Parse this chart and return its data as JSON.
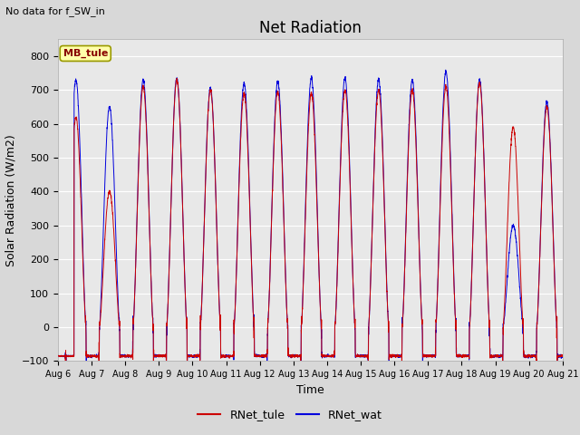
{
  "title": "Net Radiation",
  "top_left_text": "No data for f_SW_in",
  "xlabel": "Time",
  "ylabel": "Solar Radiation (W/m2)",
  "ylim": [
    -100,
    850
  ],
  "yticks": [
    -100,
    0,
    100,
    200,
    300,
    400,
    500,
    600,
    700,
    800
  ],
  "line1_color": "#cc0000",
  "line1_label": "RNet_tule",
  "line2_color": "#0000dd",
  "line2_label": "RNet_wat",
  "legend_box_label": "MB_tule",
  "legend_box_color": "#ffffaa",
  "legend_box_edge": "#999900",
  "background_color": "#e8e8e8",
  "grid_color": "#ffffff",
  "title_fontsize": 12,
  "axis_label_fontsize": 9,
  "tick_fontsize": 8,
  "peaks_tule": [
    620,
    400,
    710,
    730,
    700,
    690,
    695,
    690,
    700,
    700,
    700,
    710,
    720,
    590,
    650
  ],
  "peaks_wat": [
    730,
    650,
    730,
    735,
    705,
    720,
    725,
    735,
    735,
    730,
    730,
    755,
    730,
    300,
    665
  ],
  "night_val": -85,
  "sunrise": 5.5,
  "sunset": 20.0
}
